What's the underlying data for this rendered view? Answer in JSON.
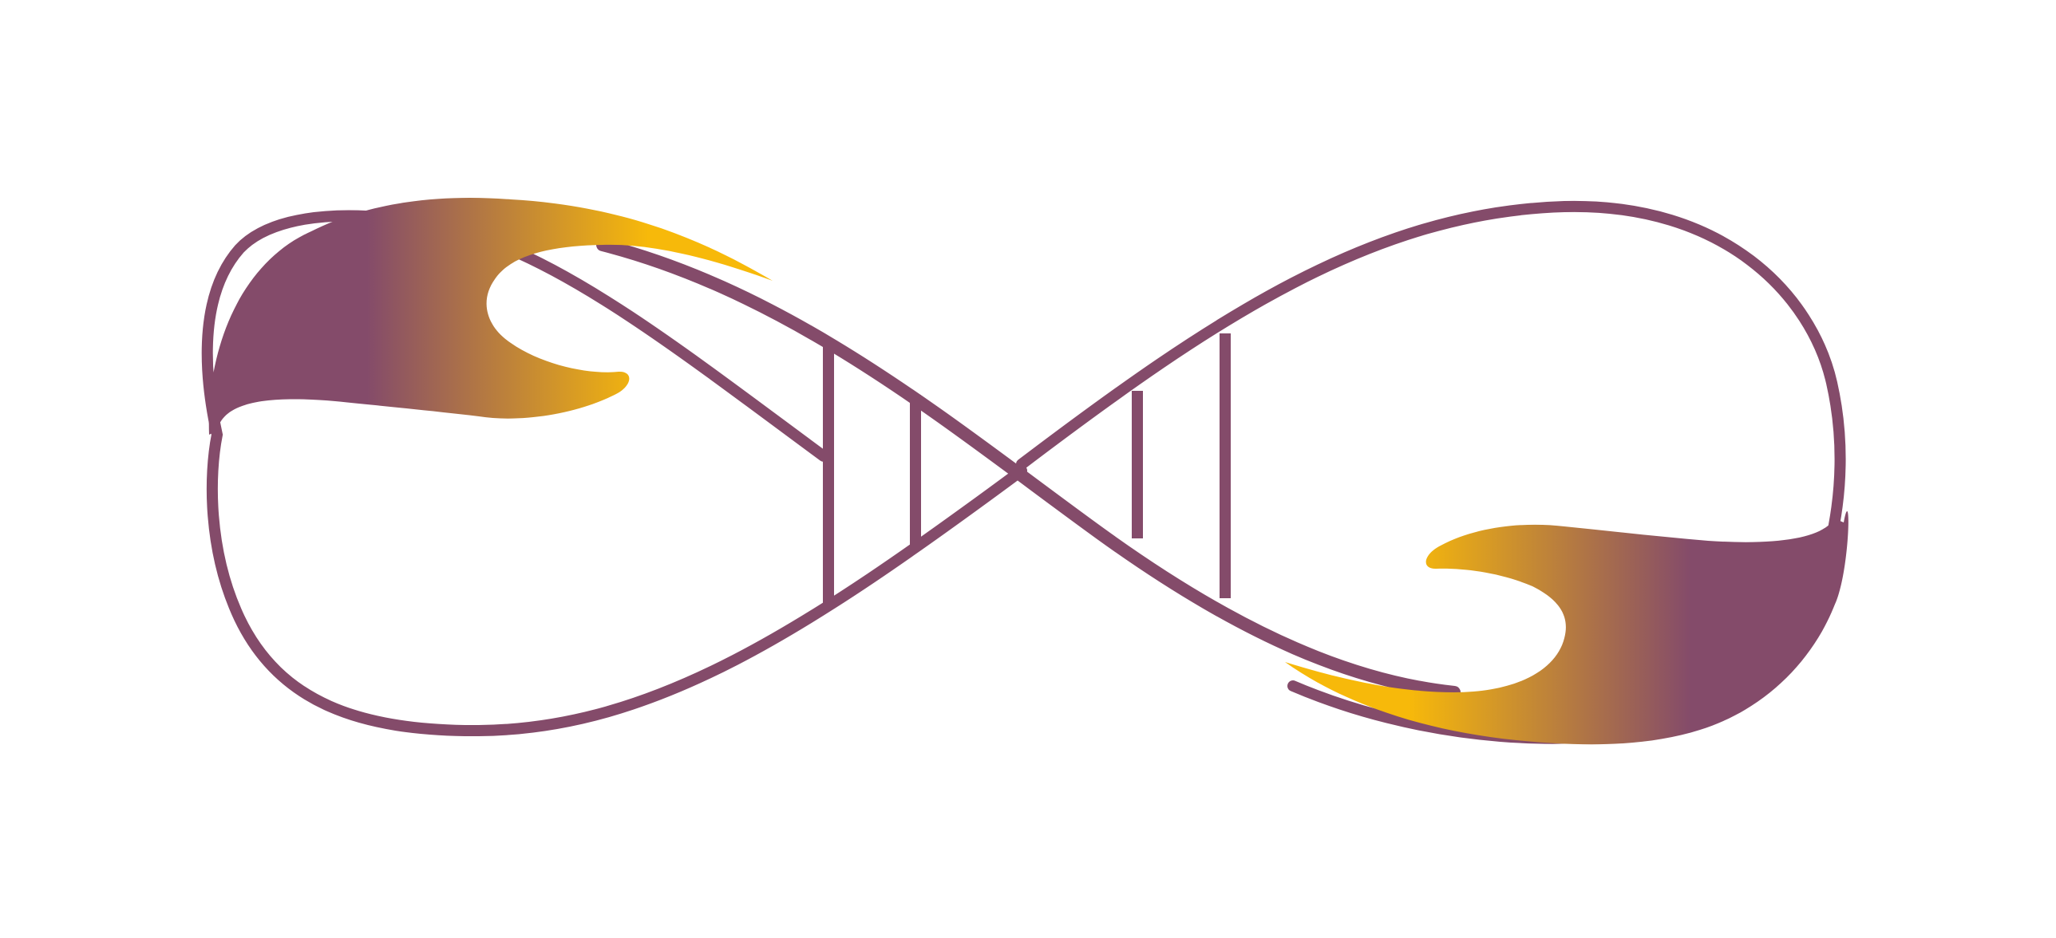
{
  "logo": {
    "name": "infinity-dna-logo",
    "colors": {
      "primary": "#844b6a",
      "accent": "#f7b90a",
      "background": "#ffffff"
    }
  }
}
